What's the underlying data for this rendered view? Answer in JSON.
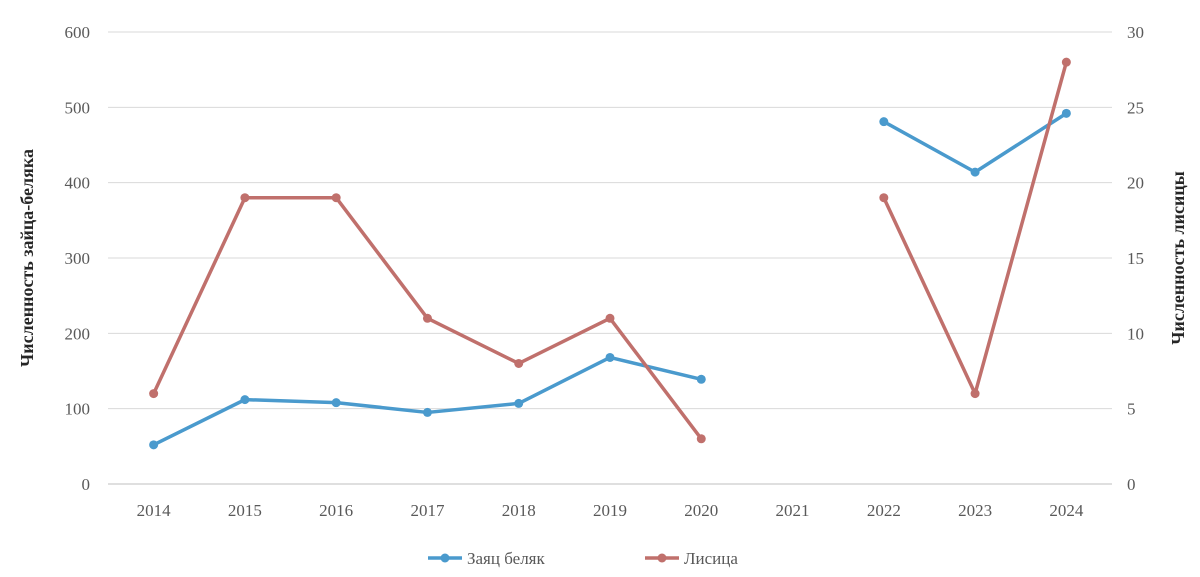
{
  "chart_data": {
    "type": "line",
    "categories": [
      "2014",
      "2015",
      "2016",
      "2017",
      "2018",
      "2019",
      "2020",
      "2021",
      "2022",
      "2023",
      "2024"
    ],
    "series": [
      {
        "name": "Заяц беляк",
        "axis": "left",
        "color": "#4A9ACD",
        "values": [
          52,
          112,
          108,
          95,
          107,
          168,
          139,
          null,
          481,
          414,
          492
        ]
      },
      {
        "name": "Лисица",
        "axis": "right",
        "color": "#C0706C",
        "values": [
          6,
          19,
          19,
          11,
          8,
          11,
          3,
          null,
          19,
          6,
          28
        ]
      }
    ],
    "ylabel": "Численность зайца-беляка",
    "y2label": "Численность лисицы",
    "ylim": [
      0,
      600
    ],
    "y2lim": [
      0,
      30
    ],
    "yticks": [
      "0",
      "100",
      "200",
      "300",
      "400",
      "500",
      "600"
    ],
    "y2ticks": [
      "0",
      "5",
      "10",
      "15",
      "20",
      "25",
      "30"
    ],
    "grid": true,
    "legend": "bottom"
  }
}
